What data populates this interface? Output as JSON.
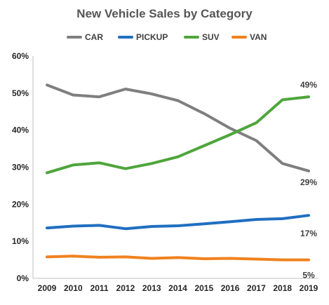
{
  "chart_data": {
    "type": "line",
    "title": "New Vehicle Sales by Category",
    "xlabel": "",
    "ylabel": "",
    "x": [
      "2009",
      "2010",
      "2011",
      "2012",
      "2013",
      "2014",
      "2015",
      "2016",
      "2017",
      "2018",
      "2019"
    ],
    "ylim": [
      0,
      60
    ],
    "yticks": [
      "0%",
      "10%",
      "20%",
      "30%",
      "40%",
      "50%",
      "60%"
    ],
    "yunit": "%",
    "grid": false,
    "legend_position": "top",
    "series": [
      {
        "name": "CAR",
        "color": "#7f7f7f",
        "values": [
          52.2,
          49.5,
          49.0,
          51.1,
          49.8,
          48.0,
          44.5,
          40.5,
          37.2,
          31.0,
          29.0
        ],
        "end_label": "29%"
      },
      {
        "name": "PICKUP",
        "color": "#1f6fc1",
        "values": [
          13.6,
          14.1,
          14.3,
          13.4,
          14.0,
          14.2,
          14.7,
          15.3,
          15.9,
          16.1,
          17.0
        ],
        "end_label": "17%"
      },
      {
        "name": "SUV",
        "color": "#4ea53b",
        "values": [
          28.5,
          30.6,
          31.2,
          29.6,
          31.0,
          32.8,
          35.8,
          38.8,
          42.0,
          48.2,
          49.0
        ],
        "end_label": "49%"
      },
      {
        "name": "VAN",
        "color": "#f0821e",
        "values": [
          5.8,
          6.0,
          5.7,
          5.8,
          5.4,
          5.6,
          5.3,
          5.4,
          5.2,
          5.0,
          5.0
        ],
        "end_label": "5%"
      }
    ]
  }
}
